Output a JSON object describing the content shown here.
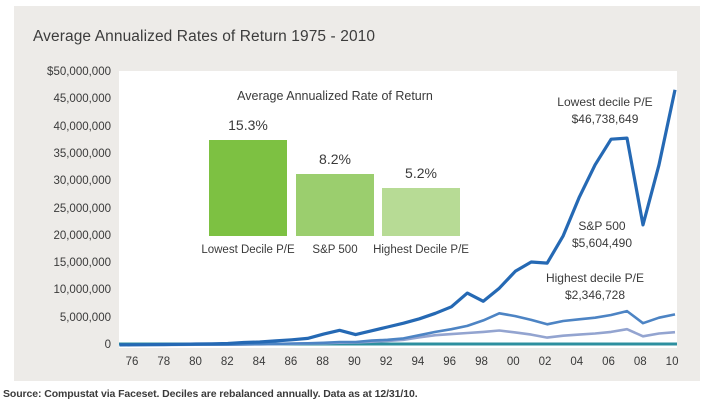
{
  "page": {
    "title": "Average Annualized Rates of Return 1975 - 2010",
    "source_note": "Source: Compustat via Faceset. Deciles are rebalanced annually. Data as at 12/31/10."
  },
  "colors": {
    "card_bg": "#edebe8",
    "plot_bg": "#ffffff",
    "text": "#3a3a3a",
    "axis_baseline_teal": "#2d8f9f",
    "line_lowest": "#2569b4",
    "line_sp500": "#4d84c4",
    "line_highest": "#93a4d0",
    "bar_lowest": "#7dc142",
    "bar_sp500": "#9bce6e",
    "bar_highest": "#b7db95"
  },
  "chart_data": [
    {
      "type": "line",
      "title": "Average Annualized Rates of Return 1975 - 2010",
      "x_range": [
        1975,
        2010
      ],
      "x_tick_labels": [
        "76",
        "78",
        "80",
        "82",
        "84",
        "86",
        "88",
        "90",
        "92",
        "94",
        "96",
        "98",
        "00",
        "02",
        "04",
        "06",
        "08",
        "10"
      ],
      "y_tick_labels": [
        "$50,000,000",
        "45,000,000",
        "40,000,000",
        "35,000,000",
        "30,000,000",
        "25,000,000",
        "20,000,000",
        "15,000,000",
        "10,000,000",
        "5,000,000",
        "0"
      ],
      "ylim_dollars": [
        0,
        50000000
      ],
      "grid": false,
      "legend": "inline-annotations",
      "series": [
        {
          "name": "Lowest decile P/E",
          "final_label": "$46,738,649",
          "final_value": 46738649,
          "values_millions": [
            0.01,
            0.04,
            0.06,
            0.09,
            0.13,
            0.18,
            0.22,
            0.28,
            0.45,
            0.55,
            0.75,
            0.95,
            1.2,
            2.0,
            2.7,
            1.9,
            2.6,
            3.3,
            4.0,
            4.8,
            5.8,
            7.0,
            9.5,
            8.0,
            10.4,
            13.5,
            15.2,
            15.0,
            20.0,
            27.0,
            33.0,
            37.7,
            37.9,
            22.0,
            33.0,
            46.74
          ]
        },
        {
          "name": "S&P 500",
          "final_label": "$5,604,490",
          "final_value": 5604490,
          "values_millions": [
            0.01,
            0.03,
            0.03,
            0.04,
            0.05,
            0.07,
            0.07,
            0.08,
            0.12,
            0.14,
            0.2,
            0.28,
            0.32,
            0.4,
            0.55,
            0.55,
            0.8,
            0.95,
            1.2,
            1.8,
            2.4,
            2.9,
            3.5,
            4.5,
            5.8,
            5.3,
            4.6,
            3.8,
            4.4,
            4.7,
            5.0,
            5.5,
            6.2,
            4.0,
            5.0,
            5.6
          ]
        },
        {
          "name": "Highest decile P/E",
          "final_label": "$2,346,728",
          "final_value": 2346728,
          "values_millions": [
            0.01,
            0.02,
            0.03,
            0.03,
            0.04,
            0.05,
            0.06,
            0.07,
            0.1,
            0.12,
            0.16,
            0.22,
            0.25,
            0.32,
            0.42,
            0.45,
            0.6,
            0.75,
            0.95,
            1.4,
            1.8,
            2.0,
            2.2,
            2.4,
            2.65,
            2.3,
            1.9,
            1.35,
            1.7,
            1.9,
            2.1,
            2.4,
            2.9,
            1.6,
            2.1,
            2.35
          ]
        }
      ]
    },
    {
      "type": "bar",
      "title": "Average Annualized Rate of Return",
      "categories": [
        "Lowest Decile P/E",
        "S&P 500",
        "Highest Decile P/E"
      ],
      "values": [
        15.3,
        8.2,
        5.2
      ],
      "value_labels": [
        "15.3%",
        "8.2%",
        "5.2%"
      ],
      "ylabel": "",
      "xlabel": ""
    }
  ]
}
